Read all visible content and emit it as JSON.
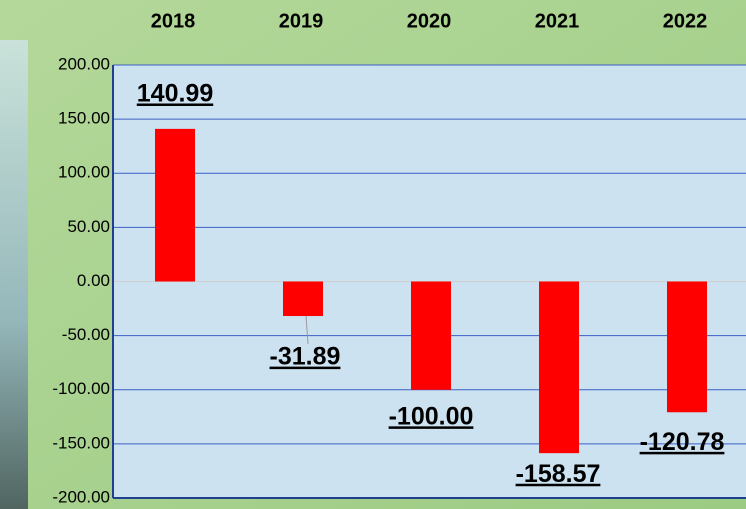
{
  "chart_data": {
    "type": "bar",
    "categories": [
      "2018",
      "2019",
      "2020",
      "2021",
      "2022"
    ],
    "values": [
      140.99,
      -31.89,
      -100,
      -158.57,
      -120.78
    ],
    "value_labels": [
      "140.99",
      "-31.89",
      "-100.00",
      "-158.57",
      "-120.78"
    ],
    "color": "#ff0000",
    "ylim": [
      -200,
      200
    ],
    "yticks": [
      {
        "value": 200,
        "label": "200.00"
      },
      {
        "value": 150,
        "label": "150.00"
      },
      {
        "value": 100,
        "label": "100.00"
      },
      {
        "value": 50,
        "label": "50.00"
      },
      {
        "value": 0,
        "label": "0.00"
      },
      {
        "value": -50,
        "label": "-50.00"
      },
      {
        "value": -100,
        "label": "-100.00"
      },
      {
        "value": -150,
        "label": "-150.00"
      },
      {
        "value": -200,
        "label": "-200.00"
      }
    ],
    "grid": true
  }
}
